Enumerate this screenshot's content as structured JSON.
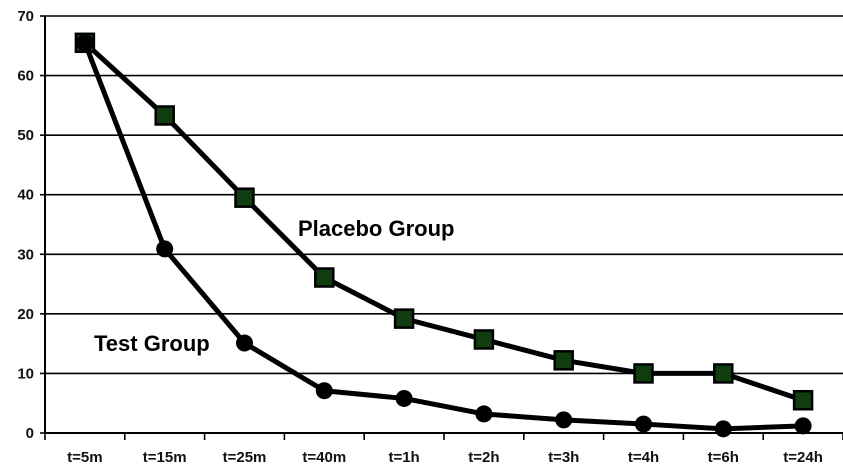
{
  "chart_data": {
    "type": "line",
    "categories": [
      "t=5m",
      "t=15m",
      "t=25m",
      "t=40m",
      "t=1h",
      "t=2h",
      "t=3h",
      "t=4h",
      "t=6h",
      "t=24h"
    ],
    "ylim": [
      0,
      70
    ],
    "yticks": [
      0,
      10,
      20,
      30,
      40,
      50,
      60,
      70
    ],
    "grid": true,
    "legend": "inline labels",
    "series": [
      {
        "name": "Placebo Group",
        "marker": "square",
        "values": [
          65.5,
          53.3,
          39.5,
          26.1,
          19.2,
          15.7,
          12.2,
          10.0,
          10.0,
          5.5
        ]
      },
      {
        "name": "Test Group",
        "marker": "circle",
        "values": [
          65.5,
          30.9,
          15.1,
          7.1,
          5.8,
          3.2,
          2.2,
          1.5,
          0.7,
          1.2
        ]
      }
    ],
    "colors": {
      "line": "#000000",
      "square_marker_fill": "#0f3d0f",
      "grid": "#000000"
    }
  }
}
